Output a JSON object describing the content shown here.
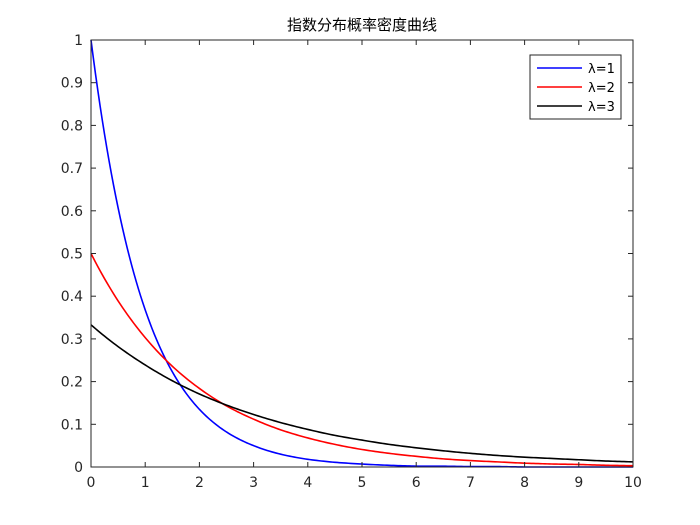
{
  "chart_data": {
    "type": "line",
    "title": "指数分布概率密度曲线",
    "xlabel": "",
    "ylabel": "",
    "xlim": [
      0,
      10
    ],
    "ylim": [
      0,
      1
    ],
    "x_ticks": [
      0,
      1,
      2,
      3,
      4,
      5,
      6,
      7,
      8,
      9,
      10
    ],
    "y_ticks": [
      0,
      0.1,
      0.2,
      0.3,
      0.4,
      0.5,
      0.6,
      0.7,
      0.8,
      0.9,
      1
    ],
    "x_tick_labels": [
      "0",
      "1",
      "2",
      "3",
      "4",
      "5",
      "6",
      "7",
      "8",
      "9",
      "10"
    ],
    "y_tick_labels": [
      "0",
      "0.1",
      "0.2",
      "0.3",
      "0.4",
      "0.5",
      "0.6",
      "0.7",
      "0.8",
      "0.9",
      "1"
    ],
    "grid": false,
    "legend_position": "top-right",
    "x": [
      0,
      0.5,
      1,
      1.5,
      2,
      2.5,
      3,
      3.5,
      4,
      4.5,
      5,
      5.5,
      6,
      6.5,
      7,
      7.5,
      8,
      8.5,
      9,
      9.5,
      10
    ],
    "series": [
      {
        "name": "λ=1",
        "color": "#0000ff",
        "values": [
          1.0,
          0.607,
          0.368,
          0.223,
          0.135,
          0.082,
          0.05,
          0.03,
          0.018,
          0.011,
          0.007,
          0.004,
          0.002,
          0.002,
          0.001,
          0.001,
          0.0,
          0.0,
          0.0,
          0.0,
          0.0
        ]
      },
      {
        "name": "λ=2",
        "color": "#ff0000",
        "values": [
          0.5,
          0.389,
          0.303,
          0.236,
          0.184,
          0.143,
          0.112,
          0.087,
          0.068,
          0.053,
          0.041,
          0.032,
          0.025,
          0.019,
          0.015,
          0.012,
          0.009,
          0.007,
          0.006,
          0.004,
          0.003
        ]
      },
      {
        "name": "λ=3",
        "color": "#000000",
        "values": [
          0.333,
          0.282,
          0.239,
          0.202,
          0.171,
          0.145,
          0.123,
          0.104,
          0.088,
          0.074,
          0.063,
          0.053,
          0.045,
          0.038,
          0.032,
          0.027,
          0.023,
          0.02,
          0.017,
          0.014,
          0.012
        ]
      }
    ]
  }
}
